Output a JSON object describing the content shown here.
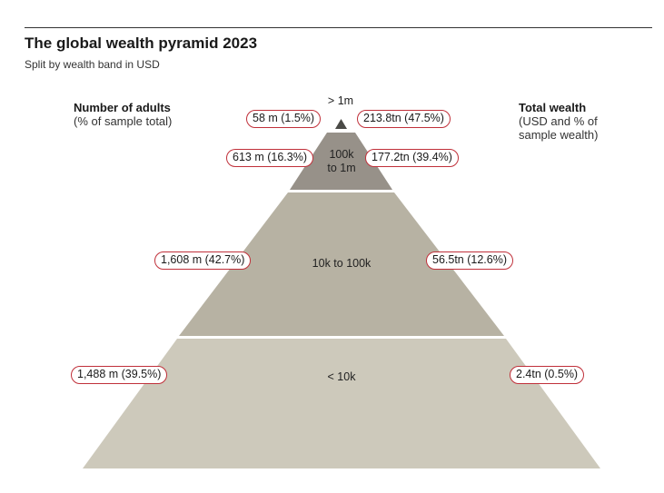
{
  "header": {
    "title": "The global wealth pyramid 2023",
    "subtitle": "Split by wealth band in USD"
  },
  "left_heading": {
    "title": "Number of adults",
    "desc": "(% of sample total)"
  },
  "right_heading": {
    "title": "Total wealth",
    "desc": "(USD and % of sample wealth)"
  },
  "colors": {
    "pill_border": "#c0303a",
    "band_top": "#4a4a46",
    "band_2": "#979189",
    "band_3": "#b7b2a3",
    "band_4": "#cdc9bb"
  },
  "bands": [
    {
      "label": "> 1m",
      "adults": "58 m (1.5%)",
      "wealth": "213.8tn (47.5%)"
    },
    {
      "label": "100k\nto 1m",
      "adults": "613 m (16.3%)",
      "wealth": "177.2tn (39.4%)"
    },
    {
      "label": "10k to 100k",
      "adults": "1,608 m (42.7%)",
      "wealth": "56.5tn (12.6%)"
    },
    {
      "label": "< 10k",
      "adults": "1,488 m (39.5%)",
      "wealth": "2.4tn (0.5%)"
    }
  ]
}
